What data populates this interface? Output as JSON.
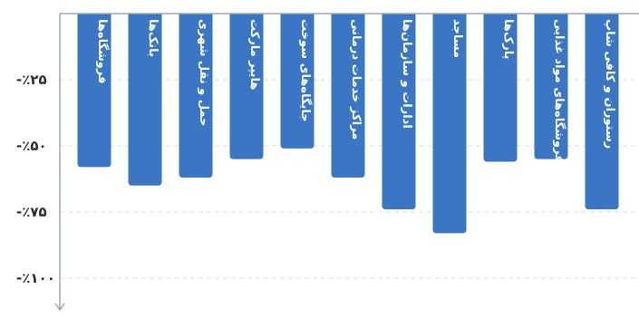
{
  "chart_data": {
    "type": "bar",
    "orientation": "vertical",
    "direction": "rtl",
    "categories": [
      "فروشگاه‌ها",
      "بانک‌ها",
      "حمل و نقل شهری",
      "هایپر مارکت",
      "جایگاه‌های سوخت",
      "مراکز خدمات درمانی",
      "ادارات و سازمان‌ها",
      "مساجد",
      "پارک‌ها",
      "فروشگاه‌های مواد غذایی",
      "رستوران و کافی شاپ"
    ],
    "values": [
      -58,
      -65,
      -62,
      -55,
      -51,
      -62,
      -74,
      -83,
      -56,
      -55,
      -74
    ],
    "yticks": [
      {
        "value": -25,
        "label": "-٪۲۵"
      },
      {
        "value": -50,
        "label": "-٪۵۰"
      },
      {
        "value": -75,
        "label": "-٪۷۵"
      },
      {
        "value": -100,
        "label": "-٪۱۰۰"
      }
    ],
    "ylim": [
      -110,
      0
    ],
    "grid": true,
    "bar_color": "#3a76c4",
    "axis_color": "#9aa7b8",
    "grid_color": "#d5dbe3"
  }
}
